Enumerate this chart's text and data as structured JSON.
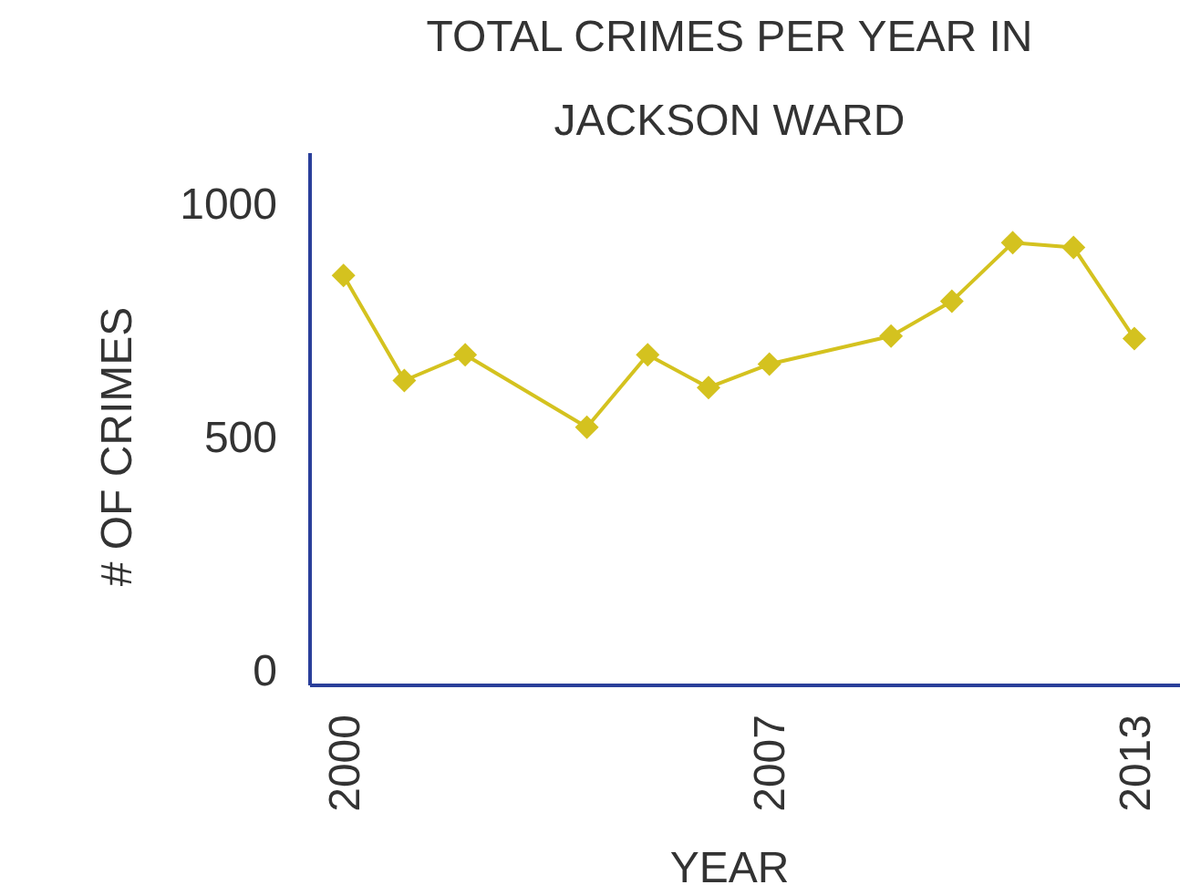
{
  "chart_data": {
    "type": "line",
    "title": "TOTAL CRIMES PER YEAR IN JACKSON WARD",
    "xlabel": "YEAR",
    "ylabel": "# OF CRIMES",
    "x": [
      2000,
      2001,
      2002,
      2004,
      2005,
      2006,
      2007,
      2009,
      2010,
      2011,
      2012,
      2013
    ],
    "series": [
      {
        "color": "#d4c21f",
        "values": [
          845,
          620,
          675,
          520,
          675,
          605,
          655,
          715,
          790,
          915,
          905,
          710
        ]
      }
    ],
    "xlim": [
      1999.45,
      2013.75
    ],
    "xticks": [
      2000,
      2007,
      2013
    ],
    "ylim": [
      -33,
      1107
    ],
    "yticks": [
      0,
      500,
      1000
    ],
    "grid": false,
    "marker": "diamond",
    "line_style": "solid"
  }
}
